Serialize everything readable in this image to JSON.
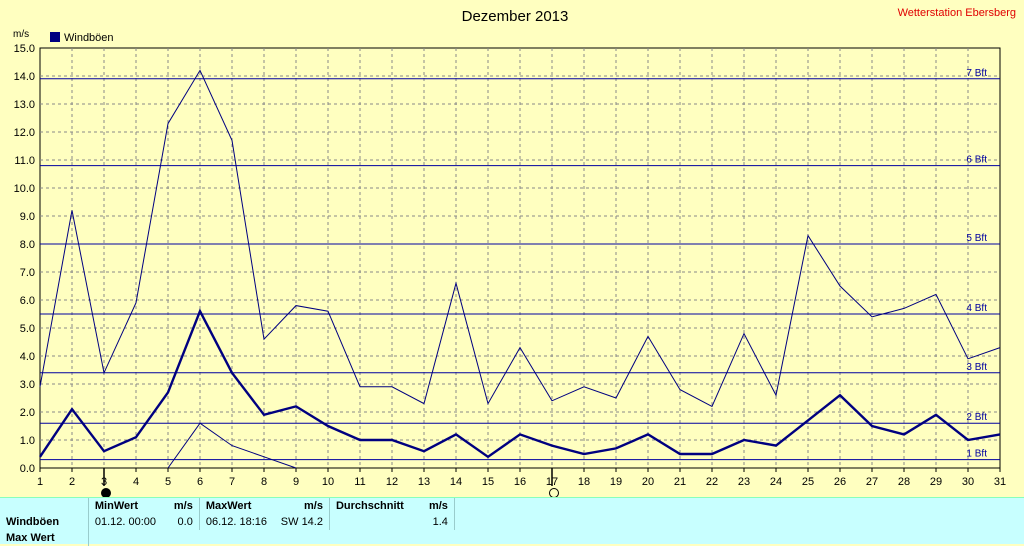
{
  "chart_data": {
    "type": "line",
    "title": "Dezember 2013",
    "station": "Wetterstation Ebersberg",
    "unit_label": "m/s",
    "legend": "Windböen",
    "legend_color": "#000080",
    "x": [
      1,
      2,
      3,
      4,
      5,
      6,
      7,
      8,
      9,
      10,
      11,
      12,
      13,
      14,
      15,
      16,
      17,
      18,
      19,
      20,
      21,
      22,
      23,
      24,
      25,
      26,
      27,
      28,
      29,
      30,
      31
    ],
    "xlim": [
      1,
      31
    ],
    "ylim": [
      0,
      15
    ],
    "ytick_labels": [
      "0.0",
      "1.0",
      "2.0",
      "3.0",
      "4.0",
      "5.0",
      "6.0",
      "7.0",
      "8.0",
      "9.0",
      "10.0",
      "11.0",
      "12.0",
      "13.0",
      "14.0",
      "15.0"
    ],
    "grid": true,
    "series": [
      {
        "name": "Windböen",
        "role": "max",
        "values": [
          2.9,
          9.2,
          3.4,
          5.9,
          12.3,
          14.2,
          11.7,
          4.6,
          5.8,
          5.6,
          2.9,
          2.9,
          2.3,
          6.6,
          2.3,
          4.3,
          2.4,
          2.9,
          2.5,
          4.7,
          2.8,
          2.2,
          4.8,
          2.6,
          8.3,
          6.5,
          5.4,
          5.7,
          6.2,
          3.9,
          4.3
        ]
      },
      {
        "role": "avg",
        "values": [
          0.4,
          2.1,
          0.6,
          1.1,
          2.7,
          5.6,
          3.4,
          1.9,
          2.2,
          1.5,
          1.0,
          1.0,
          0.6,
          1.2,
          0.4,
          1.2,
          0.8,
          0.5,
          0.7,
          1.2,
          0.5,
          0.5,
          1.0,
          0.8,
          1.7,
          2.6,
          1.5,
          1.2,
          1.9,
          1.0,
          1.2
        ]
      },
      {
        "role": "min",
        "values": [
          null,
          null,
          null,
          null,
          0.0,
          1.6,
          0.8,
          0.4,
          0.0,
          null,
          null,
          null,
          null,
          null,
          null,
          null,
          null,
          null,
          null,
          null,
          null,
          null,
          null,
          null,
          null,
          null,
          null,
          null,
          null,
          null,
          null
        ]
      }
    ],
    "beaufort_lines": [
      {
        "label": "1 Bft",
        "value": 0.3
      },
      {
        "label": "2 Bft",
        "value": 1.6
      },
      {
        "label": "3 Bft",
        "value": 3.4
      },
      {
        "label": "4 Bft",
        "value": 5.5
      },
      {
        "label": "5 Bft",
        "value": 8.0
      },
      {
        "label": "6 Bft",
        "value": 10.8
      },
      {
        "label": "7 Bft",
        "value": 13.9
      }
    ],
    "moon_markers": [
      {
        "day": 3,
        "phase": "new"
      },
      {
        "day": 17,
        "phase": "full"
      }
    ]
  },
  "stats": {
    "headers": [
      "MinWert",
      "m/s",
      "MaxWert",
      "m/s",
      "Durchschnitt",
      "m/s"
    ],
    "rows": [
      {
        "label": "Windböen",
        "min_time": "01.12.  00:00",
        "min_val": "0.0",
        "max_time": "06.12.  18:16",
        "max_dir": "SW",
        "max_val": "14.2",
        "avg": "1.4"
      },
      {
        "label": "Max Wert"
      }
    ]
  }
}
